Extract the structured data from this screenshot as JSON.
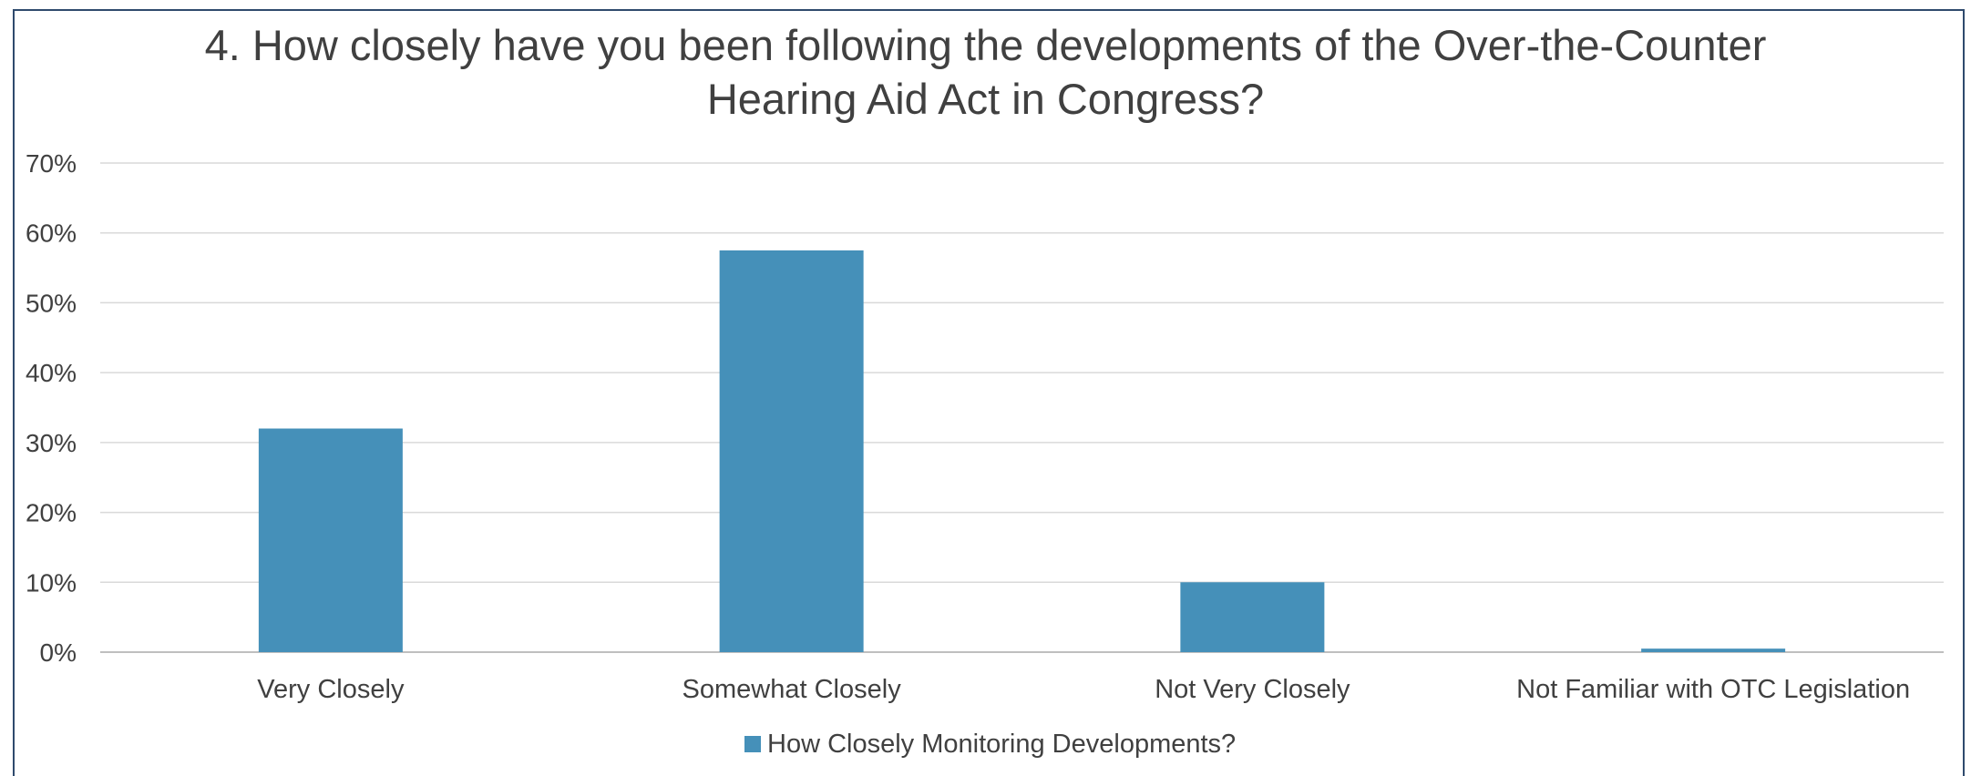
{
  "chart_data": {
    "type": "bar",
    "title_lines": [
      "4.  How closely have you been following the developments of the Over-the-Counter",
      "Hearing Aid Act in Congress?"
    ],
    "categories": [
      "Very Closely",
      "Somewhat Closely",
      "Not Very Closely",
      "Not Familiar with OTC Legislation"
    ],
    "series": [
      {
        "name": "How Closely Monitoring Developments?",
        "values": [
          32,
          57.5,
          10,
          0.5
        ],
        "color": "#4590b9"
      }
    ],
    "y_ticks": [
      "0%",
      "10%",
      "20%",
      "30%",
      "40%",
      "50%",
      "60%",
      "70%"
    ],
    "ylim": [
      0,
      70
    ],
    "grid": true,
    "legend_position": "bottom"
  }
}
